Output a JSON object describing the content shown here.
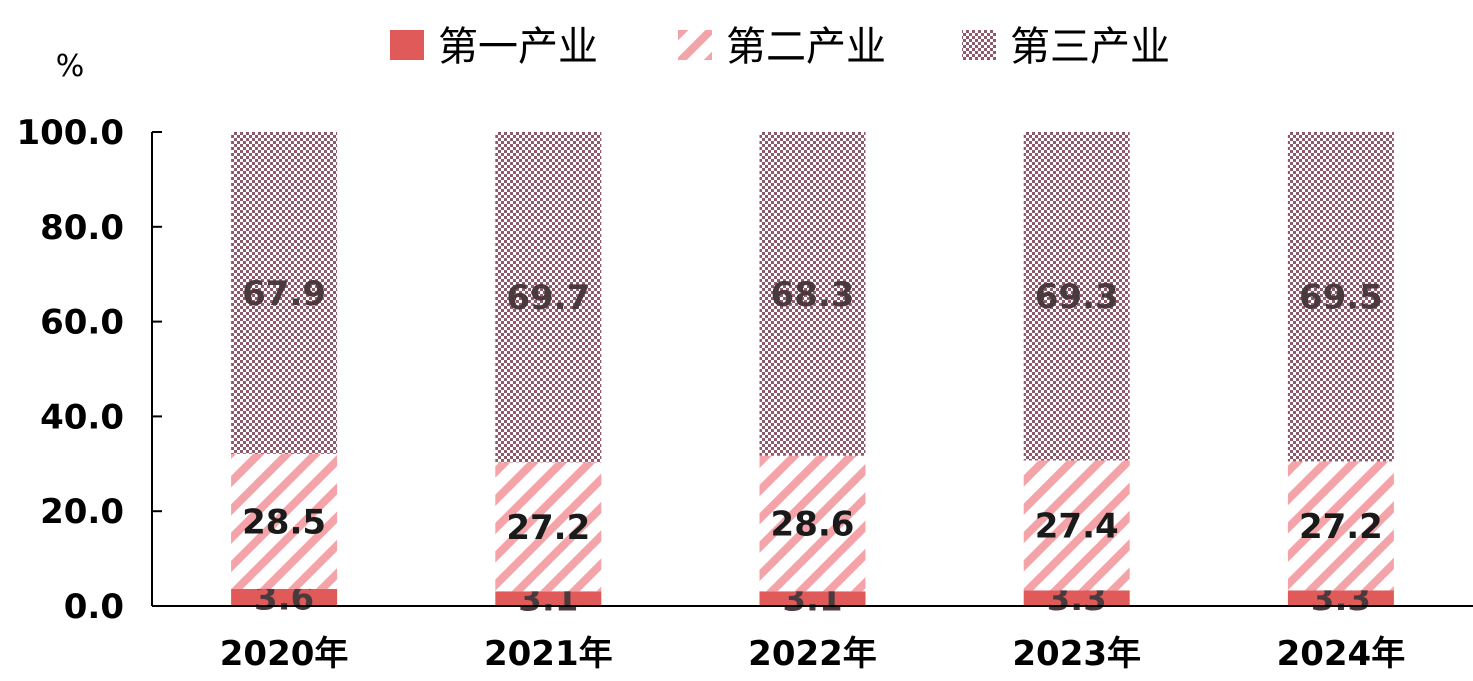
{
  "chart_data": {
    "type": "bar",
    "stacked": true,
    "unit": "%",
    "categories": [
      "2020年",
      "2021年",
      "2022年",
      "2023年",
      "2024年"
    ],
    "series": [
      {
        "name": "第一产业",
        "values": [
          3.6,
          3.1,
          3.1,
          3.3,
          3.3
        ],
        "color": "#e05a5a",
        "pattern": "solid"
      },
      {
        "name": "第二产业",
        "values": [
          28.5,
          27.2,
          28.6,
          27.4,
          27.2
        ],
        "color": "#f4a3a8",
        "pattern": "diagonal"
      },
      {
        "name": "第三产业",
        "values": [
          67.9,
          69.7,
          68.3,
          69.3,
          69.5
        ],
        "color": "#8b5a6b",
        "pattern": "dots"
      }
    ],
    "y_ticks": [
      "0.0",
      "20.0",
      "40.0",
      "60.0",
      "80.0",
      "100.0"
    ],
    "ylim": [
      0,
      100
    ],
    "grid": false,
    "legend_position": "top"
  }
}
